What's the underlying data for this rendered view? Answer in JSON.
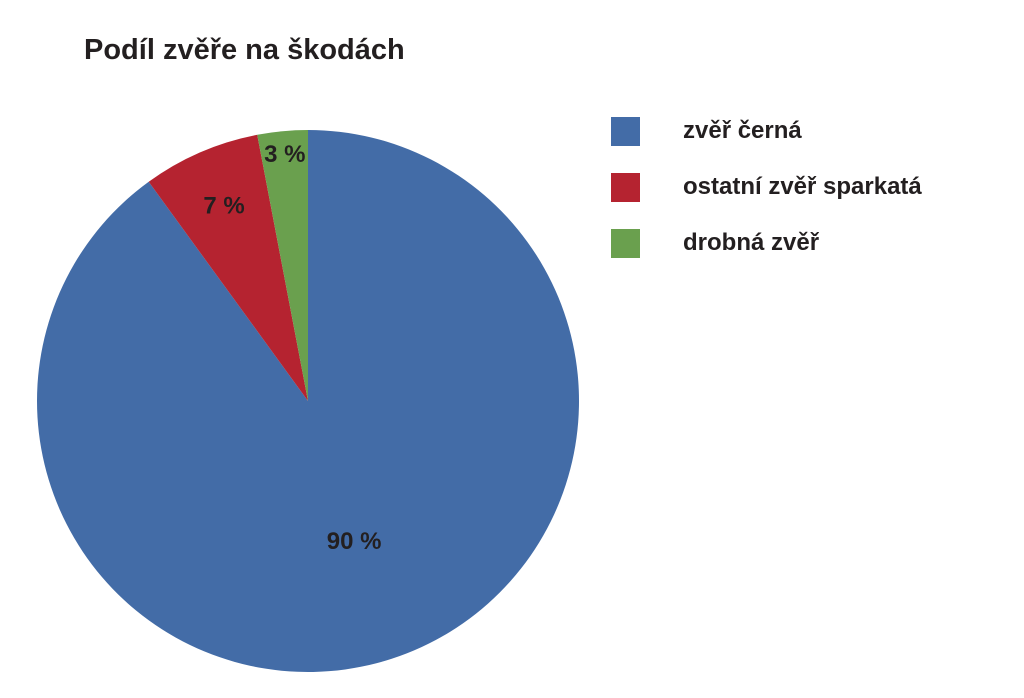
{
  "chart_data": {
    "type": "pie",
    "title": "Podíl zvěře na škodách",
    "categories": [
      "zvěř černá",
      "ostatní zvěř sparkatá",
      "drobná zvěř"
    ],
    "values": [
      90,
      7,
      3
    ],
    "value_labels": [
      "90 %",
      "7 %",
      "3 %"
    ],
    "colors": [
      "#436ca7",
      "#b52330",
      "#6aa04e"
    ],
    "legend": "right"
  }
}
